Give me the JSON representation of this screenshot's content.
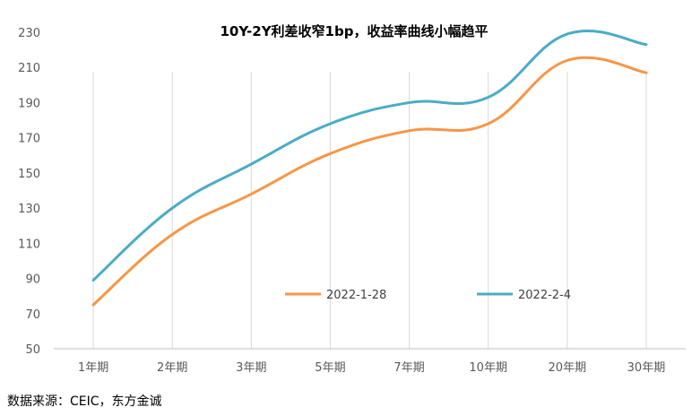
{
  "chart_data": {
    "type": "line",
    "title": "10Y-2Y利差收窄1bp，收益率曲线小幅趋平",
    "categories": [
      "1年期",
      "2年期",
      "3年期",
      "5年期",
      "7年期",
      "10年期",
      "20年期",
      "30年期"
    ],
    "series": [
      {
        "name": "2022-1-28",
        "color": "#F79646",
        "values": [
          75,
          115,
          138,
          161,
          174,
          178,
          214,
          207
        ]
      },
      {
        "name": "2022-2-4",
        "color": "#4BACC6",
        "values": [
          89,
          130,
          155,
          178,
          190,
          193,
          229,
          223
        ]
      }
    ],
    "yticks": [
      50,
      70,
      90,
      110,
      130,
      150,
      170,
      190,
      210,
      230
    ],
    "ylim": [
      50,
      230
    ],
    "grid": "vertical",
    "legend": "inside-bottom"
  },
  "footer": {
    "source": "数据来源：CEIC，东方金诚"
  }
}
